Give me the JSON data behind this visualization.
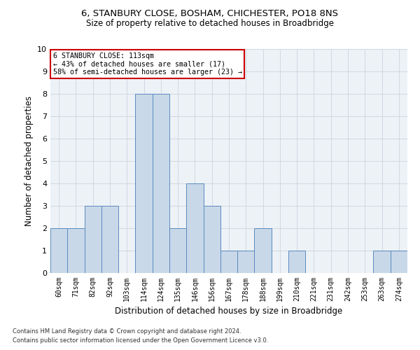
{
  "title1": "6, STANBURY CLOSE, BOSHAM, CHICHESTER, PO18 8NS",
  "title2": "Size of property relative to detached houses in Broadbridge",
  "xlabel": "Distribution of detached houses by size in Broadbridge",
  "ylabel": "Number of detached properties",
  "categories": [
    "60sqm",
    "71sqm",
    "82sqm",
    "92sqm",
    "103sqm",
    "114sqm",
    "124sqm",
    "135sqm",
    "146sqm",
    "156sqm",
    "167sqm",
    "178sqm",
    "188sqm",
    "199sqm",
    "210sqm",
    "221sqm",
    "231sqm",
    "242sqm",
    "253sqm",
    "263sqm",
    "274sqm"
  ],
  "values": [
    2,
    2,
    3,
    3,
    0,
    8,
    8,
    2,
    4,
    3,
    1,
    1,
    2,
    0,
    1,
    0,
    0,
    0,
    0,
    1,
    1
  ],
  "bar_color": "#c8d8e8",
  "bar_edge_color": "#5a8abf",
  "annotation_title": "6 STANBURY CLOSE: 113sqm",
  "annotation_line1": "← 43% of detached houses are smaller (17)",
  "annotation_line2": "58% of semi-detached houses are larger (23) →",
  "annotation_box_color": "#ffffff",
  "annotation_box_edge_color": "#cc0000",
  "ylim": [
    0,
    10
  ],
  "yticks": [
    0,
    1,
    2,
    3,
    4,
    5,
    6,
    7,
    8,
    9,
    10
  ],
  "grid_color": "#d0d8e0",
  "bg_color": "#edf2f7",
  "footer1": "Contains HM Land Registry data © Crown copyright and database right 2024.",
  "footer2": "Contains public sector information licensed under the Open Government Licence v3.0."
}
